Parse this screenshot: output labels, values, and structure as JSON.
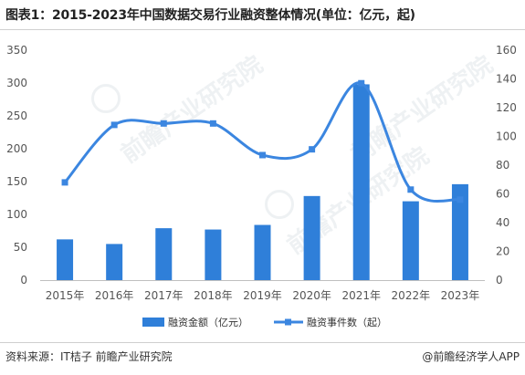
{
  "title": "图表1：2015-2023年中国数据交易行业融资整体情况(单位：亿元，起)",
  "source": "资料来源：IT桔子 前瞻产业研究院",
  "credit": "@前瞻经济学人APP",
  "watermark": "前瞻产业研究院",
  "colors": {
    "bar": "#2f7fd9",
    "line": "#3b86e0",
    "axis_text": "#555555",
    "axis_line": "#bfbfbf"
  },
  "chart_data": {
    "type": "bar+line",
    "categories": [
      "2015年",
      "2016年",
      "2017年",
      "2018年",
      "2019年",
      "2020年",
      "2021年",
      "2022年",
      "2023年"
    ],
    "series": [
      {
        "name": "融资金额（亿元）",
        "type": "bar",
        "axis": "left",
        "values": [
          62,
          55,
          79,
          77,
          84,
          128,
          298,
          120,
          146
        ]
      },
      {
        "name": "融资事件数（起）",
        "type": "line",
        "axis": "right",
        "values": [
          68,
          108,
          109,
          109,
          87,
          91,
          137,
          63,
          56
        ]
      }
    ],
    "y_left": {
      "min": 0,
      "max": 350,
      "ticks": [
        0,
        50,
        100,
        150,
        200,
        250,
        300,
        350
      ]
    },
    "y_right": {
      "min": 0,
      "max": 160,
      "ticks": [
        0,
        20,
        40,
        60,
        80,
        100,
        120,
        140,
        160
      ]
    },
    "legend_position": "bottom",
    "grid": false
  }
}
